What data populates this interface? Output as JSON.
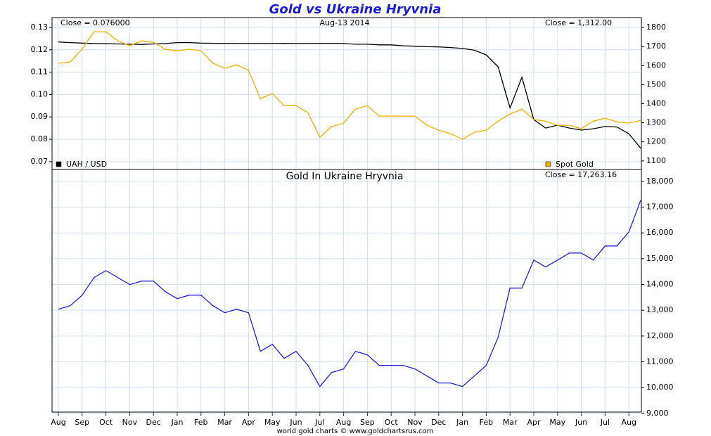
{
  "chart_data": [
    {
      "type": "line",
      "title": "Gold vs Ukraine Hryvnia",
      "annotations": [
        "Close = 0.076000",
        "Aug-13  2014",
        "Close = 1,312.00"
      ],
      "series": [
        {
          "name": "UAH / USD",
          "color": "#000000",
          "values": [
            0.1235,
            0.1232,
            0.123,
            0.1228,
            0.1227,
            0.1226,
            0.1225,
            0.1224,
            0.1226,
            0.1228,
            0.1232,
            0.1232,
            0.123,
            0.1229,
            0.1229,
            0.1228,
            0.1228,
            0.1228,
            0.1228,
            0.1229,
            0.1228,
            0.1228,
            0.1229,
            0.1229,
            0.1228,
            0.1225,
            0.1225,
            0.1222,
            0.1222,
            0.1218,
            0.1216,
            0.1214,
            0.1213,
            0.121,
            0.1206,
            0.1198,
            0.1177,
            0.1124,
            0.094,
            0.1077,
            0.0888,
            0.085,
            0.0863,
            0.085,
            0.0841,
            0.0847,
            0.0857,
            0.0855,
            0.0825,
            0.076
          ]
        },
        {
          "name": "Spot Gold",
          "color": "#f0b000",
          "axis": "y2",
          "values": [
            1612,
            1619,
            1686,
            1778,
            1778,
            1730,
            1704,
            1730,
            1722,
            1686,
            1678,
            1686,
            1678,
            1612,
            1586,
            1604,
            1575,
            1427,
            1453,
            1390,
            1390,
            1353,
            1224,
            1280,
            1298,
            1372,
            1390,
            1335,
            1335,
            1335,
            1335,
            1287,
            1261,
            1243,
            1213,
            1250,
            1261,
            1309,
            1346,
            1372,
            1317,
            1309,
            1287,
            1287,
            1269,
            1309,
            1324,
            1305,
            1298,
            1312
          ]
        }
      ],
      "ylim": [
        0.0665,
        0.1344
      ],
      "yticks": [
        {
          "value": 0.07,
          "label": "0.07"
        },
        {
          "value": 0.08,
          "label": "0.08"
        },
        {
          "value": 0.09,
          "label": "0.09"
        },
        {
          "value": 0.1,
          "label": "0.10"
        },
        {
          "value": 0.11,
          "label": "0.11"
        },
        {
          "value": 0.12,
          "label": "0.12"
        },
        {
          "value": 0.13,
          "label": "0.13"
        }
      ],
      "y2lim": [
        1055,
        1852
      ],
      "y2ticks": [
        1100,
        1200,
        1300,
        1400,
        1500,
        1600,
        1700,
        1800
      ],
      "grid": true,
      "legend": "bottom"
    },
    {
      "type": "line",
      "title": "Gold In Ukraine Hryvnia",
      "annotations": [
        "Close = 17,263.16"
      ],
      "categories": [
        "Aug",
        null,
        "Sep",
        null,
        "Oct",
        null,
        "Nov",
        null,
        "Dec",
        null,
        "Jan",
        null,
        "Feb",
        null,
        "Mar",
        null,
        "Apr",
        null,
        "May",
        null,
        "Jun",
        null,
        "Jul",
        null,
        "Aug",
        null,
        "Sep",
        null,
        "Oct",
        null,
        "Nov",
        null,
        "Dec",
        null,
        "Jan",
        null,
        "Feb",
        null,
        "Mar",
        null,
        "Apr",
        null,
        "May",
        null,
        "Jun",
        null,
        "Jul",
        null,
        "Aug",
        null
      ],
      "series": [
        {
          "color": "#2020e0",
          "values": [
            13041,
            13177,
            13586,
            14267,
            14540,
            14267,
            13994,
            14131,
            14131,
            13722,
            13450,
            13586,
            13586,
            13177,
            12905,
            13041,
            12905,
            11406,
            11678,
            11134,
            11406,
            10861,
            10044,
            10589,
            10725,
            11406,
            11270,
            10861,
            10861,
            10861,
            10725,
            10452,
            10180,
            10180,
            10044,
            10452,
            10861,
            11951,
            13858,
            13858,
            14948,
            14676,
            14948,
            15221,
            15221,
            14948,
            15493,
            15493,
            16038,
            17264
          ]
        }
      ],
      "ylim": [
        9050,
        18460
      ],
      "yticks": [
        {
          "value": 9000,
          "label": "9,000"
        },
        {
          "value": 10000,
          "label": "10,000"
        },
        {
          "value": 11000,
          "label": "11,000"
        },
        {
          "value": 12000,
          "label": "12,000"
        },
        {
          "value": 13000,
          "label": "13,000"
        },
        {
          "value": 14000,
          "label": "14,000"
        },
        {
          "value": 15000,
          "label": "15,000"
        },
        {
          "value": 16000,
          "label": "16,000"
        },
        {
          "value": 17000,
          "label": "17,000"
        },
        {
          "value": 18000,
          "label": "18,000"
        }
      ],
      "grid": true
    }
  ],
  "footer": "world gold charts © www.goldchartsrus.com"
}
